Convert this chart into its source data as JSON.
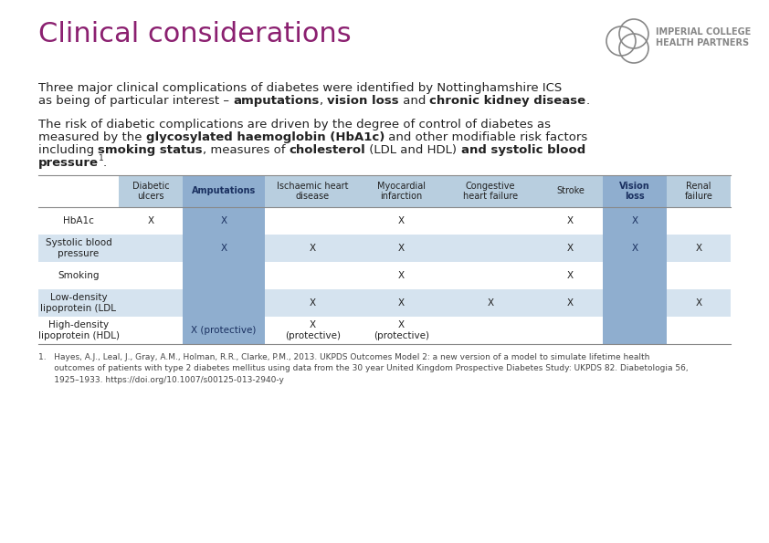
{
  "title": "Clinical considerations",
  "title_color": "#8B2070",
  "title_fontsize": 22,
  "bg_color": "#FFFFFF",
  "body_fontsize": 9.5,
  "col_headers": [
    "Diabetic\nulcers",
    "Amputations",
    "Ischaemic heart\ndisease",
    "Myocardial\ninfarction",
    "Congestive\nheart failure",
    "Stroke",
    "Vision\nloss",
    "Renal\nfailure"
  ],
  "row_headers": [
    "HbA1c",
    "Systolic blood\npressure",
    "Smoking",
    "Low-density\nlipoprotein (LDL",
    "High-density\nlipoprotein (HDL)"
  ],
  "table_data": [
    [
      "X",
      "X",
      "",
      "X",
      "",
      "X",
      "X",
      ""
    ],
    [
      "",
      "X",
      "X",
      "X",
      "",
      "X",
      "X",
      "X"
    ],
    [
      "",
      "",
      "",
      "X",
      "",
      "X",
      "",
      ""
    ],
    [
      "",
      "",
      "X",
      "X",
      "X",
      "X",
      "",
      "X"
    ],
    [
      "",
      "X (protective)",
      "X\n(protective)",
      "X\n(protective)",
      "",
      "",
      "",
      ""
    ]
  ],
  "highlight_cols": [
    1,
    6
  ],
  "col_highlight_bg": "#8FAECF",
  "col_normal_bg": "#B8CEDF",
  "row_odd_bg": "#FFFFFF",
  "row_even_bg": "#D5E3EF",
  "row_odd_hl_bg": "#8FAECF",
  "row_even_hl_bg": "#8FAECF",
  "header_empty_bg": "#FFFFFF",
  "table_line_color": "#888888",
  "text_color": "#222222",
  "highlight_text_color": "#1a3060",
  "footnote": "1.   Hayes, A.J., Leal, J., Gray, A.M., Holman, R.R., Clarke, P.M., 2013. UKPDS Outcomes Model 2: a new version of a model to simulate lifetime health\n      outcomes of patients with type 2 diabetes mellitus using data from the 30 year United Kingdom Prospective Diabetes Study: UKPDS 82. Diabetologia 56,\n      1925–1933. https://doi.org/10.1007/s00125-013-2940-y",
  "logo_text1": "IMPERIAL COLLEGE",
  "logo_text2": "HEALTH PARTNERS",
  "logo_color": "#888888"
}
